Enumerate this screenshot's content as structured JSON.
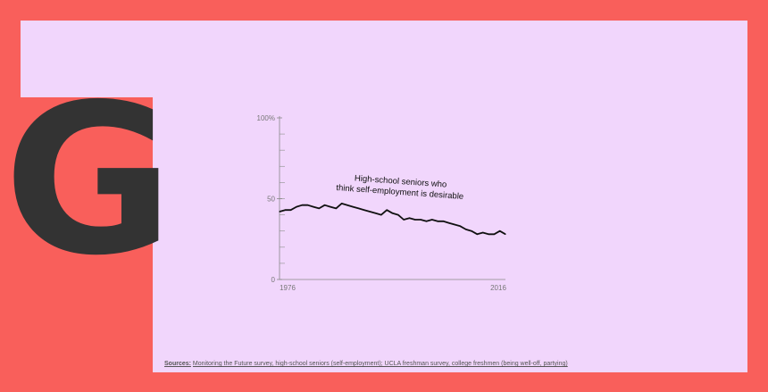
{
  "logo": {
    "letter": "G"
  },
  "chart_data": {
    "type": "line",
    "ylim": [
      0,
      100
    ],
    "xlim": [
      1976,
      2016
    ],
    "y_ticks": [
      "100%",
      "50",
      "0"
    ],
    "y_tick_values": [
      100,
      50,
      0
    ],
    "x_ticks": [
      "1976",
      "2016"
    ],
    "x_tick_values": [
      1976,
      2016
    ],
    "annotation": [
      "High-school seniors who",
      "think self-employment is desirable"
    ],
    "series": [
      {
        "x": [
          1976,
          1977,
          1978,
          1979,
          1980,
          1981,
          1982,
          1983,
          1984,
          1985,
          1986,
          1987,
          1988,
          1989,
          1990,
          1991,
          1992,
          1993,
          1994,
          1995,
          1996,
          1997,
          1998,
          1999,
          2000,
          2001,
          2002,
          2003,
          2004,
          2005,
          2006,
          2007,
          2008,
          2009,
          2010,
          2011,
          2012,
          2013,
          2014,
          2015,
          2016
        ],
        "values": [
          42,
          43,
          43,
          45,
          46,
          46,
          45,
          44,
          46,
          45,
          44,
          47,
          46,
          45,
          44,
          43,
          42,
          41,
          40,
          43,
          41,
          40,
          37,
          38,
          37,
          37,
          36,
          37,
          36,
          36,
          35,
          34,
          33,
          31,
          30,
          28,
          29,
          28,
          28,
          30,
          28
        ]
      }
    ]
  },
  "source": {
    "label": "Sources:",
    "text": "Monitoring the Future survey, high-school seniors (self-employment); UCLA freshman survey, college freshmen (being well-off, partying)"
  },
  "colors": {
    "background": "#f95f5b",
    "panel": "#f1d6fc",
    "logo": "#333333",
    "line": "#111111",
    "axis": "#888888"
  }
}
